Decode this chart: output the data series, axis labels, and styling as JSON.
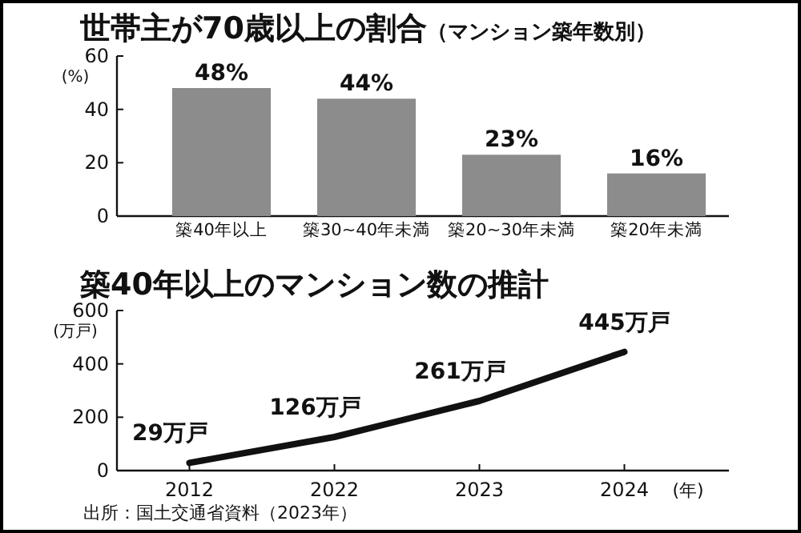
{
  "chart_data": [
    {
      "type": "bar",
      "title": "世帯主が70歳以上の割合",
      "subtitle": "（マンション築年数別）",
      "ylabel": "(%)",
      "categories": [
        "築40年以上",
        "築30~40年未満",
        "築20~30年未満",
        "築20年未満"
      ],
      "values": [
        48,
        44,
        23,
        16
      ],
      "value_labels": [
        "48%",
        "44%",
        "23%",
        "16%"
      ],
      "color": "#8c8c8c",
      "ylim": [
        0,
        60
      ],
      "yticks": [
        0,
        20,
        40,
        60
      ]
    },
    {
      "type": "line",
      "title": "築40年以上のマンション数の推計",
      "ylabel": "(万戸)",
      "xlabel": "(年)",
      "categories": [
        "2012",
        "2022",
        "2023",
        "2024"
      ],
      "values": [
        29,
        126,
        261,
        445
      ],
      "value_labels": [
        "29万戸",
        "126万戸",
        "261万戸",
        "445万戸"
      ],
      "color": "#111111",
      "ylim": [
        0,
        600
      ],
      "yticks": [
        0,
        200,
        400,
        600
      ],
      "marker": "none",
      "line_style": "solid",
      "annotations": [
        "出所：国土交通省資料（2023年）"
      ]
    }
  ]
}
